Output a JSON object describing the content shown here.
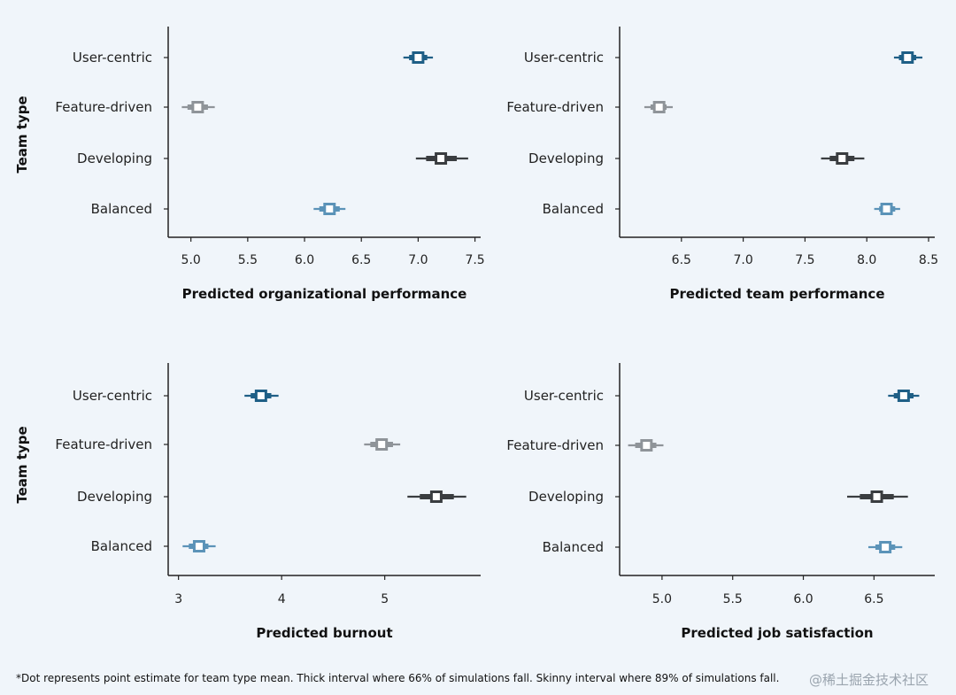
{
  "colors": {
    "User-centric": "#1f5f86",
    "Feature-driven": "#8f9499",
    "Developing": "#3a3d40",
    "Balanced": "#5b93b8",
    "axis": "#222222",
    "background": "#f0f5fa"
  },
  "footnote": "*Dot represents point estimate for team type mean. Thick interval where 66% of simulations fall. Skinny interval where 89% of simulations fall.",
  "watermark": "@稀土掘金技术社区",
  "chart_data": [
    {
      "type": "interval",
      "xlabel": "Predicted organizational performance",
      "ylabel": "Team type",
      "categories": [
        "User-centric",
        "Feature-driven",
        "Developing",
        "Balanced"
      ],
      "xticks": [
        5.0,
        5.5,
        6.0,
        6.5,
        7.0,
        7.5
      ],
      "xtick_labels": [
        "5.0",
        "5.5",
        "6.0",
        "6.5",
        "7.0",
        "7.5"
      ],
      "xlim": [
        4.8,
        7.55
      ],
      "series": [
        {
          "category": "User-centric",
          "estimate": 7.0,
          "thick": [
            6.92,
            7.08
          ],
          "skinny": [
            6.87,
            7.13
          ]
        },
        {
          "category": "Feature-driven",
          "estimate": 5.06,
          "thick": [
            4.97,
            5.15
          ],
          "skinny": [
            4.92,
            5.21
          ]
        },
        {
          "category": "Developing",
          "estimate": 7.2,
          "thick": [
            7.07,
            7.34
          ],
          "skinny": [
            6.98,
            7.44
          ]
        },
        {
          "category": "Balanced",
          "estimate": 6.22,
          "thick": [
            6.13,
            6.31
          ],
          "skinny": [
            6.08,
            6.36
          ]
        }
      ]
    },
    {
      "type": "interval",
      "xlabel": "Predicted team performance",
      "ylabel": "",
      "categories": [
        "User-centric",
        "Feature-driven",
        "Developing",
        "Balanced"
      ],
      "xticks": [
        6.5,
        7.0,
        7.5,
        8.0,
        8.5
      ],
      "xtick_labels": [
        "6.5",
        "7.0",
        "7.5",
        "8.0",
        "8.5"
      ],
      "xlim": [
        6.0,
        8.55
      ],
      "series": [
        {
          "category": "User-centric",
          "estimate": 8.33,
          "thick": [
            8.26,
            8.4
          ],
          "skinny": [
            8.22,
            8.45
          ]
        },
        {
          "category": "Feature-driven",
          "estimate": 6.32,
          "thick": [
            6.25,
            6.38
          ],
          "skinny": [
            6.2,
            6.43
          ]
        },
        {
          "category": "Developing",
          "estimate": 7.8,
          "thick": [
            7.7,
            7.9
          ],
          "skinny": [
            7.63,
            7.98
          ]
        },
        {
          "category": "Balanced",
          "estimate": 8.16,
          "thick": [
            8.1,
            8.23
          ],
          "skinny": [
            8.06,
            8.27
          ]
        }
      ]
    },
    {
      "type": "interval",
      "xlabel": "Predicted burnout",
      "ylabel": "Team type",
      "categories": [
        "User-centric",
        "Feature-driven",
        "Developing",
        "Balanced"
      ],
      "xticks": [
        3,
        4,
        5
      ],
      "xtick_labels": [
        "3",
        "4",
        "5"
      ],
      "xlim": [
        2.9,
        5.93
      ],
      "series": [
        {
          "category": "User-centric",
          "estimate": 3.8,
          "thick": [
            3.7,
            3.9
          ],
          "skinny": [
            3.64,
            3.97
          ]
        },
        {
          "category": "Feature-driven",
          "estimate": 4.97,
          "thick": [
            4.86,
            5.08
          ],
          "skinny": [
            4.8,
            5.15
          ]
        },
        {
          "category": "Developing",
          "estimate": 5.5,
          "thick": [
            5.34,
            5.67
          ],
          "skinny": [
            5.22,
            5.79
          ]
        },
        {
          "category": "Balanced",
          "estimate": 3.2,
          "thick": [
            3.1,
            3.29
          ],
          "skinny": [
            3.04,
            3.36
          ]
        }
      ]
    },
    {
      "type": "interval",
      "xlabel": "Predicted job satisfaction",
      "ylabel": "",
      "categories": [
        "User-centric",
        "Feature-driven",
        "Developing",
        "Balanced"
      ],
      "xticks": [
        5.0,
        5.5,
        6.0,
        6.5
      ],
      "xtick_labels": [
        "5.0",
        "5.5",
        "6.0",
        "6.5"
      ],
      "xlim": [
        4.7,
        6.93
      ],
      "series": [
        {
          "category": "User-centric",
          "estimate": 6.71,
          "thick": [
            6.64,
            6.78
          ],
          "skinny": [
            6.6,
            6.82
          ]
        },
        {
          "category": "Feature-driven",
          "estimate": 4.89,
          "thick": [
            4.81,
            4.96
          ],
          "skinny": [
            4.76,
            5.01
          ]
        },
        {
          "category": "Developing",
          "estimate": 6.52,
          "thick": [
            6.4,
            6.64
          ],
          "skinny": [
            6.31,
            6.74
          ]
        },
        {
          "category": "Balanced",
          "estimate": 6.58,
          "thick": [
            6.51,
            6.65
          ],
          "skinny": [
            6.46,
            6.7
          ]
        }
      ]
    }
  ]
}
